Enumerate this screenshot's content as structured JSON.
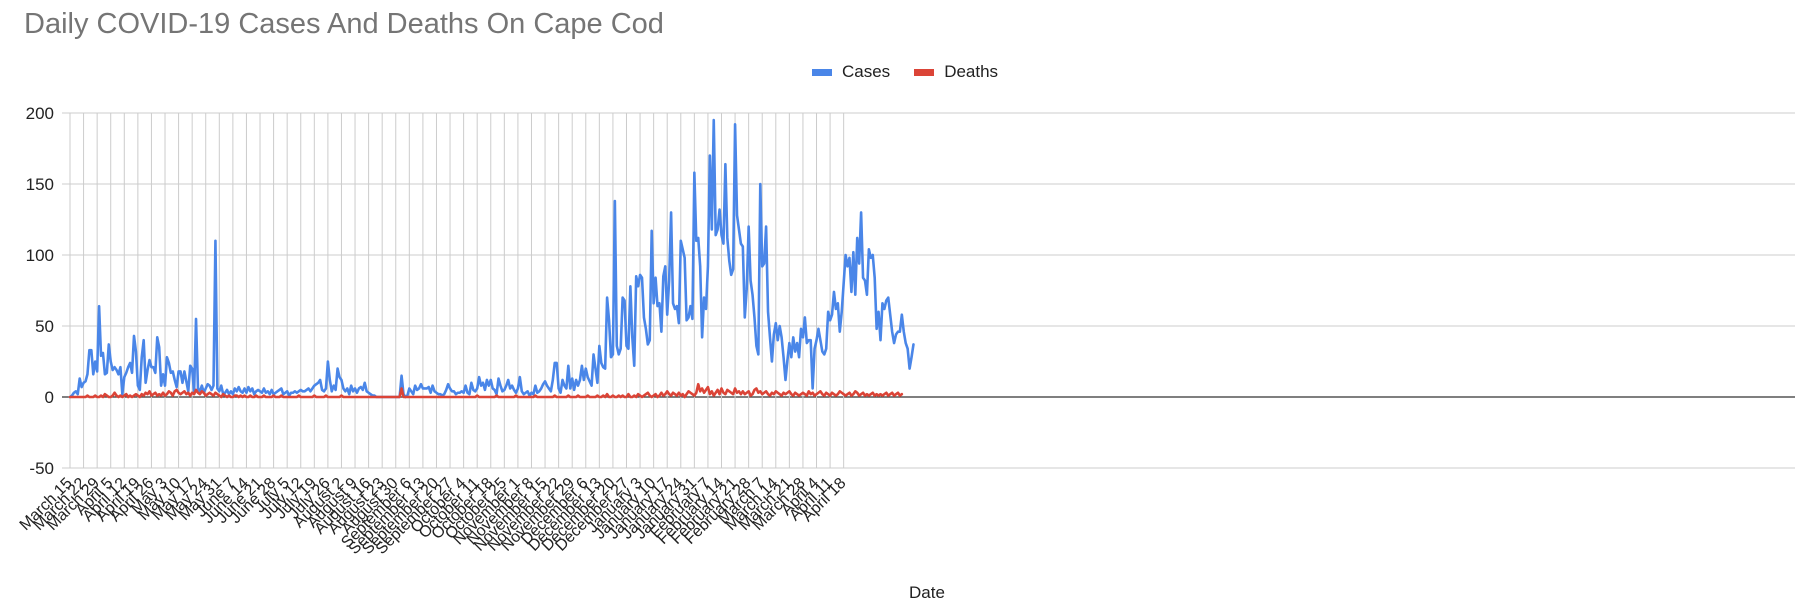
{
  "chart_data": {
    "type": "line",
    "title": "Daily COVID-19 Cases And Deaths On Cape Cod",
    "xlabel": "Date",
    "ylabel": "",
    "ylim": [
      -50,
      200
    ],
    "yticks": [
      200,
      150,
      100,
      50,
      0,
      -50
    ],
    "grid": true,
    "legend_position": "top",
    "start_date": "March 15",
    "x_tick_labels": [
      "March 15",
      "March 22",
      "March 29",
      "April 5",
      "April 12",
      "April 19",
      "April 26",
      "May 3",
      "May 10",
      "May 17",
      "May 24",
      "May 31",
      "June 7",
      "June 14",
      "June 21",
      "June 28",
      "July 5",
      "July 12",
      "July 19",
      "July 26",
      "August 2",
      "August 9",
      "August 16",
      "August 23",
      "August 30",
      "September 6",
      "September 13",
      "September 20",
      "September 27",
      "October 4",
      "October 11",
      "October 18",
      "October 25",
      "November 1",
      "November 8",
      "November 15",
      "November 22",
      "November 29",
      "December 6",
      "December 13",
      "December 20",
      "December 27",
      "January 3",
      "January 10",
      "January 17",
      "January 24",
      "January 31",
      "February 7",
      "February 14",
      "February 21",
      "February 28",
      "March 7",
      "March 14",
      "March 21",
      "March 28",
      "April 4",
      "April 11",
      "April 18"
    ],
    "series": [
      {
        "name": "Cases",
        "color": "#4a86e8",
        "values": [
          0,
          1,
          3,
          4,
          2,
          13,
          7,
          10,
          11,
          16,
          33,
          33,
          16,
          25,
          18,
          64,
          29,
          31,
          16,
          17,
          37,
          25,
          19,
          21,
          19,
          16,
          21,
          2,
          14,
          17,
          21,
          24,
          17,
          43,
          32,
          8,
          5,
          28,
          40,
          10,
          19,
          26,
          21,
          21,
          17,
          42,
          35,
          8,
          16,
          8,
          28,
          24,
          17,
          18,
          12,
          7,
          18,
          18,
          10,
          18,
          11,
          4,
          22,
          20,
          3,
          55,
          6,
          4,
          8,
          3,
          6,
          9,
          8,
          5,
          8,
          110,
          6,
          4,
          8,
          2,
          3,
          5,
          2,
          4,
          2,
          6,
          4,
          7,
          4,
          3,
          6,
          3,
          7,
          4,
          6,
          2,
          4,
          5,
          4,
          3,
          6,
          3,
          4,
          2,
          5,
          2,
          3,
          4,
          5,
          6,
          2,
          3,
          4,
          1,
          3,
          3,
          4,
          3,
          4,
          5,
          4,
          4,
          5,
          6,
          4,
          6,
          8,
          9,
          10,
          12,
          5,
          4,
          6,
          25,
          12,
          4,
          8,
          5,
          20,
          14,
          12,
          6,
          4,
          6,
          2,
          8,
          4,
          6,
          3,
          6,
          7,
          5,
          10,
          4,
          3,
          2,
          1,
          1,
          0,
          0,
          0,
          0,
          0,
          0,
          0,
          0,
          0,
          0,
          0,
          0,
          0,
          15,
          2,
          0,
          1,
          6,
          4,
          2,
          8,
          5,
          6,
          9,
          6,
          6,
          6,
          7,
          3,
          8,
          4,
          3,
          2,
          2,
          1,
          2,
          5,
          9,
          6,
          4,
          4,
          2,
          3,
          3,
          4,
          3,
          8,
          3,
          2,
          10,
          5,
          4,
          6,
          14,
          8,
          10,
          5,
          12,
          8,
          12,
          6,
          5,
          2,
          13,
          8,
          4,
          5,
          8,
          12,
          6,
          8,
          5,
          3,
          6,
          14,
          4,
          2,
          3,
          4,
          1,
          3,
          2,
          8,
          3,
          4,
          6,
          9,
          11,
          8,
          6,
          4,
          12,
          24,
          24,
          6,
          3,
          12,
          8,
          6,
          22,
          6,
          13,
          5,
          12,
          8,
          12,
          22,
          12,
          20,
          14,
          11,
          8,
          30,
          20,
          10,
          36,
          24,
          21,
          20,
          70,
          54,
          28,
          30,
          138,
          36,
          30,
          34,
          70,
          68,
          36,
          34,
          78,
          42,
          22,
          85,
          78,
          86,
          84,
          56,
          48,
          37,
          40,
          117,
          66,
          84,
          64,
          66,
          46,
          85,
          92,
          58,
          82,
          130,
          66,
          62,
          64,
          52,
          110,
          104,
          98,
          54,
          56,
          64,
          55,
          158,
          110,
          112,
          92,
          42,
          70,
          62,
          92,
          170,
          118,
          195,
          114,
          118,
          132,
          114,
          108,
          164,
          112,
          96,
          86,
          90,
          192,
          128,
          118,
          108,
          106,
          56,
          76,
          120,
          82,
          72,
          56,
          36,
          30,
          150,
          92,
          94,
          120,
          60,
          42,
          25,
          44,
          52,
          40,
          50,
          42,
          28,
          12,
          26,
          38,
          28,
          42,
          32,
          38,
          28,
          48,
          42,
          56,
          38,
          40,
          40,
          6,
          34,
          40,
          48,
          40,
          32,
          30,
          34,
          60,
          54,
          58,
          74,
          62,
          66,
          46,
          60,
          80,
          100,
          92,
          98,
          74,
          102,
          72,
          112,
          94,
          130,
          84,
          82,
          72,
          104,
          98,
          100,
          84,
          48,
          60,
          40,
          66,
          62,
          68,
          70,
          58,
          46,
          38,
          44,
          46,
          46,
          58,
          46,
          38,
          34,
          20,
          28,
          37
        ]
      },
      {
        "name": "Deaths",
        "color": "#db4437",
        "values": [
          0,
          0,
          0,
          0,
          0,
          0,
          0,
          0,
          0,
          1,
          0,
          0,
          0,
          1,
          0,
          0,
          1,
          0,
          2,
          1,
          0,
          0,
          1,
          3,
          1,
          0,
          1,
          0,
          1,
          2,
          0,
          1,
          0,
          1,
          2,
          1,
          0,
          2,
          1,
          3,
          2,
          4,
          1,
          2,
          3,
          1,
          2,
          1,
          3,
          1,
          2,
          4,
          3,
          1,
          4,
          5,
          3,
          2,
          3,
          4,
          2,
          3,
          1,
          3,
          2,
          5,
          3,
          2,
          4,
          3,
          1,
          2,
          3,
          2,
          1,
          3,
          2,
          1,
          0,
          2,
          1,
          0,
          1,
          0,
          0,
          1,
          1,
          0,
          1,
          0,
          1,
          0,
          0,
          1,
          0,
          0,
          1,
          0,
          0,
          0,
          1,
          0,
          0,
          0,
          0,
          1,
          0,
          0,
          0,
          1,
          0,
          0,
          0,
          0,
          0,
          0,
          0,
          0,
          1,
          0,
          0,
          0,
          0,
          0,
          0,
          0,
          1,
          0,
          0,
          0,
          0,
          0,
          1,
          0,
          0,
          0,
          0,
          0,
          0,
          0,
          1,
          0,
          0,
          0,
          0,
          0,
          0,
          0,
          0,
          0,
          0,
          0,
          0,
          0,
          0,
          0,
          0,
          0,
          0,
          0,
          0,
          0,
          0,
          0,
          0,
          0,
          0,
          0,
          0,
          0,
          0,
          6,
          0,
          0,
          0,
          0,
          0,
          0,
          0,
          0,
          0,
          0,
          0,
          0,
          0,
          0,
          0,
          0,
          0,
          0,
          0,
          0,
          0,
          0,
          0,
          0,
          0,
          0,
          0,
          0,
          0,
          0,
          0,
          0,
          0,
          0,
          0,
          0,
          0,
          0,
          1,
          0,
          0,
          0,
          0,
          0,
          0,
          0,
          0,
          0,
          1,
          0,
          0,
          0,
          0,
          0,
          0,
          0,
          0,
          0,
          1,
          0,
          0,
          0,
          0,
          0,
          0,
          0,
          0,
          0,
          1,
          0,
          0,
          0,
          0,
          0,
          0,
          0,
          0,
          0,
          1,
          0,
          0,
          0,
          0,
          0,
          0,
          1,
          0,
          0,
          0,
          0,
          1,
          0,
          0,
          0,
          0,
          1,
          0,
          0,
          0,
          0,
          1,
          0,
          0,
          1,
          0,
          2,
          0,
          0,
          1,
          0,
          0,
          1,
          0,
          1,
          0,
          0,
          2,
          0,
          0,
          1,
          0,
          2,
          1,
          0,
          1,
          2,
          3,
          1,
          0,
          1,
          2,
          0,
          1,
          3,
          1,
          2,
          4,
          2,
          1,
          3,
          2,
          1,
          3,
          1,
          2,
          0,
          2,
          4,
          3,
          2,
          1,
          3,
          9,
          4,
          6,
          3,
          5,
          7,
          2,
          4,
          1,
          3,
          5,
          2,
          6,
          3,
          2,
          5,
          4,
          3,
          2,
          6,
          3,
          4,
          2,
          4,
          2,
          3,
          4,
          1,
          2,
          5,
          6,
          3,
          4,
          2,
          3,
          4,
          2,
          1,
          3,
          2,
          4,
          3,
          2,
          1,
          3,
          2,
          3,
          4,
          2,
          1,
          3,
          2,
          1,
          2,
          3,
          2,
          1,
          4,
          2,
          3,
          1,
          2,
          3,
          4,
          2,
          1,
          3,
          2,
          1,
          3,
          2,
          1,
          2,
          4,
          3,
          2,
          1,
          2,
          3,
          1,
          2,
          4,
          3,
          1,
          2,
          3,
          1,
          2,
          1,
          2,
          3,
          1,
          2,
          1,
          2,
          1,
          2,
          3,
          1,
          2,
          3,
          1,
          2,
          3,
          1,
          2
        ]
      }
    ]
  }
}
